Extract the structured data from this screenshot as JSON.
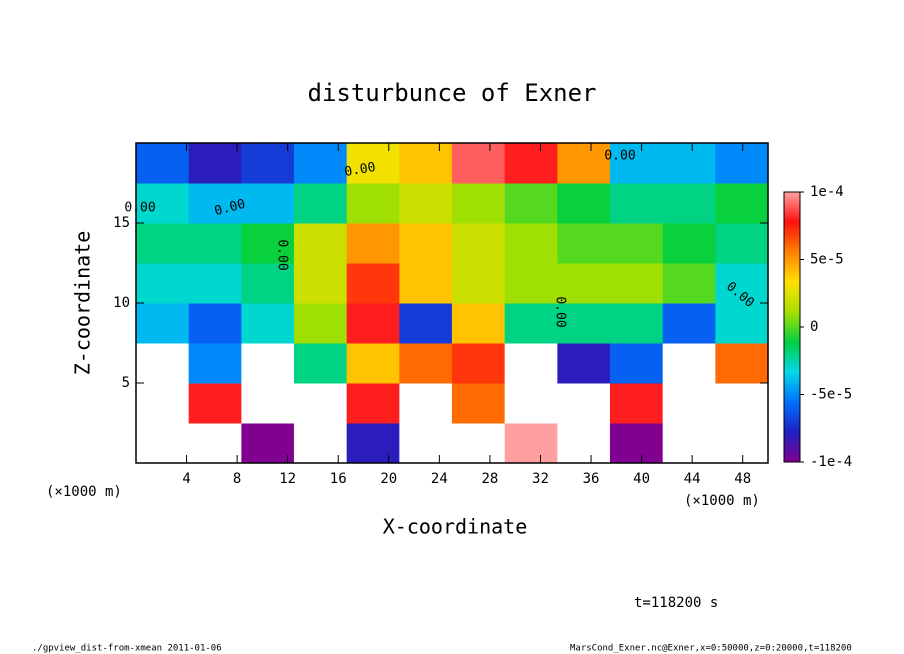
{
  "chart_data": {
    "type": "heatmap",
    "title": "disturbunce of Exner",
    "x_label": "X-coordinate",
    "y_label": "Z-coordinate",
    "x_unit_left": "(×1000 m)",
    "x_unit_right": "(×1000 m)",
    "time_label": "t=118200 s",
    "footer_left": "./gpview_dist-from-xmean  2011-01-06",
    "footer_right": "MarsCond_Exner.nc@Exner,x=0:50000,z=0:20000,t=118200",
    "contour_labels": [
      "0.00",
      "0.00",
      "0.00",
      "0.00",
      "0.00",
      "0.00",
      "0.00"
    ],
    "xlim": [
      0,
      50
    ],
    "xticks": [
      4,
      8,
      12,
      16,
      20,
      24,
      28,
      32,
      36,
      40,
      44,
      48
    ],
    "ylim": [
      0,
      20
    ],
    "yticks": [
      5,
      10,
      15
    ],
    "x": [
      2.08,
      6.25,
      10.42,
      14.58,
      18.75,
      22.92,
      27.08,
      31.25,
      35.42,
      39.58,
      43.75,
      47.92
    ],
    "y": [
      1.25,
      3.75,
      6.25,
      8.75,
      11.25,
      13.75,
      16.25,
      18.75
    ],
    "values": [
      [
        -0.00015,
        0.00015,
        -0.0001,
        0.00015,
        -8e-05,
        0.00015,
        0.00015,
        0.0001,
        -0.00015,
        -0.0001,
        -0.00015,
        -0.00015
      ],
      [
        -0.00015,
        8e-05,
        -0.00015,
        0.00015,
        8e-05,
        0.00015,
        6e-05,
        0.00015,
        -0.00012,
        8e-05,
        -0.00015,
        -0.00015
      ],
      [
        0.00012,
        -5e-05,
        0.00012,
        -2e-05,
        4e-05,
        6e-05,
        7e-05,
        0.00012,
        -8e-05,
        -6e-05,
        0.00012,
        6e-05
      ],
      [
        -4e-05,
        -6e-05,
        -3e-05,
        1e-05,
        8e-05,
        -7e-05,
        4e-05,
        -2e-05,
        -2e-05,
        -2e-05,
        -6e-05,
        -3e-05
      ],
      [
        -3e-05,
        -3e-05,
        -2e-05,
        2e-05,
        7e-05,
        4e-05,
        2e-05,
        1e-05,
        1e-05,
        1e-05,
        0,
        -3e-05
      ],
      [
        -2e-05,
        -2e-05,
        -1e-05,
        2e-05,
        5e-05,
        4e-05,
        2e-05,
        1e-05,
        0,
        0,
        -1e-05,
        -2e-05
      ],
      [
        -3e-05,
        -4e-05,
        -4e-05,
        -2e-05,
        1e-05,
        2e-05,
        1e-05,
        0,
        -1e-05,
        -2e-05,
        -2e-05,
        -1e-05
      ],
      [
        -6e-05,
        -8e-05,
        -7e-05,
        -5e-05,
        3e-05,
        4e-05,
        9e-05,
        8e-05,
        5e-05,
        -4e-05,
        -4e-05,
        -5e-05
      ]
    ],
    "zlim": [
      -0.0001,
      0.0001
    ],
    "zticks": [
      {
        "value": 0.0001,
        "label": "1e-4"
      },
      {
        "value": 5e-05,
        "label": "5e-5"
      },
      0,
      {
        "value": -5e-05,
        "label": "-5e-5"
      },
      {
        "value": -0.0001,
        "label": "-1e-4"
      }
    ],
    "colors": [
      "#80008f",
      "#2020c0",
      "#0070ff",
      "#00d8e8",
      "#00d040",
      "#a8e000",
      "#ffe000",
      "#ff8000",
      "#ff1010",
      "#ffa0a0"
    ],
    "out_of_range_color": "#ffffff"
  }
}
